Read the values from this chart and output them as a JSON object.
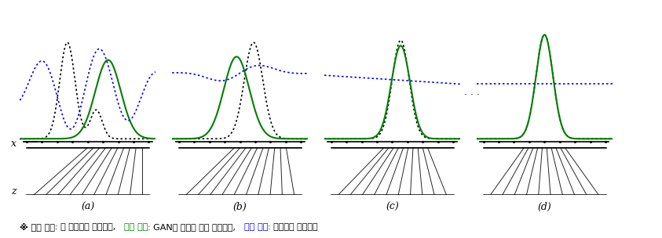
{
  "caption_parts": [
    {
      "text": "※ 검은 점선",
      "color": "black",
      "bold": true
    },
    {
      "text": ": 원 데이터의 확률분포,   ",
      "color": "black",
      "bold": false
    },
    {
      "text": "녹색 점선",
      "color": "green",
      "bold": true
    },
    {
      "text": ": GAN이 만들어 내는 확률분포,   ",
      "color": "black",
      "bold": false
    },
    {
      "text": "파란 점선",
      "color": "blue",
      "bold": true
    },
    {
      "text": ": 분류자의 확률분포",
      "color": "black",
      "bold": false
    }
  ],
  "panel_labels": [
    "(a)",
    "(b)",
    "(c)",
    "(d)"
  ],
  "dots_ellipsis": "⋅ ⋅ ⋅"
}
